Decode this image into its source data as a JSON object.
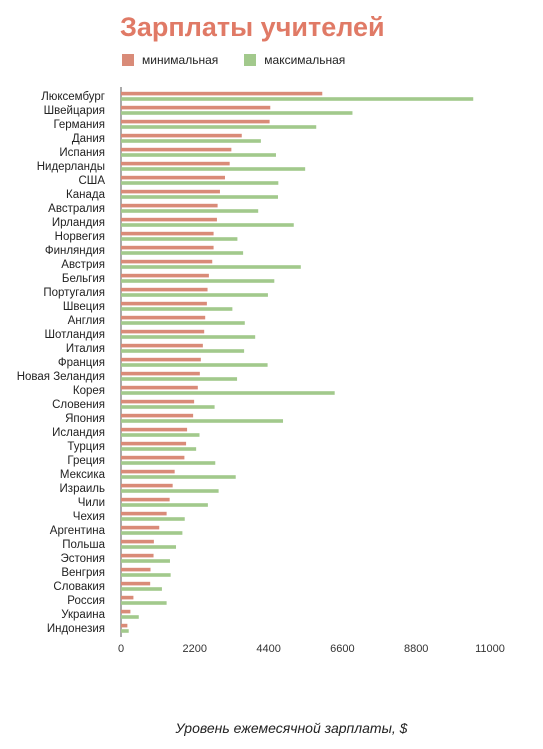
{
  "chart_data": {
    "type": "bar",
    "orientation": "horizontal",
    "title": "Зарплаты учителей",
    "xlabel": "Уровень ежемесячной зарплаты, $",
    "ylabel": "",
    "xlim": [
      0,
      12000
    ],
    "xticks": [
      "0",
      "2200",
      "4400",
      "6600",
      "8800",
      "11000"
    ],
    "grid": false,
    "legend_position": "top-left",
    "categories": [
      "Люксембург",
      "Швейцария",
      "Германия",
      "Дания",
      "Испания",
      "Нидерланды",
      "США",
      "Канада",
      "Австралия",
      "Ирландия",
      "Норвегия",
      "Финляндия",
      "Австрия",
      "Бельгия",
      "Португалия",
      "Швеция",
      "Англия",
      "Шотландия",
      "Италия",
      "Франция",
      "Новая Зеландия",
      "Корея",
      "Словения",
      "Япония",
      "Исландия",
      "Турция",
      "Греция",
      "Мексика",
      "Израиль",
      "Чили",
      "Чехия",
      "Аргентина",
      "Польша",
      "Эстония",
      "Венгрия",
      "Словакия",
      "Россия",
      "Украина",
      "Индонезия"
    ],
    "series": [
      {
        "name": "минимальная",
        "color": "#d98b78",
        "values": [
          6000,
          4450,
          4430,
          3600,
          3290,
          3240,
          3100,
          2950,
          2880,
          2860,
          2760,
          2760,
          2720,
          2620,
          2580,
          2560,
          2510,
          2480,
          2440,
          2380,
          2350,
          2290,
          2180,
          2150,
          1970,
          1940,
          1890,
          1600,
          1540,
          1450,
          1360,
          1140,
          980,
          970,
          880,
          870,
          370,
          280,
          190
        ]
      },
      {
        "name": "максимальная",
        "color": "#a2c98c",
        "values": [
          10500,
          6900,
          5820,
          4170,
          4620,
          5490,
          4690,
          4680,
          4090,
          5150,
          3470,
          3640,
          5360,
          4570,
          4380,
          3320,
          3690,
          4000,
          3670,
          4370,
          3460,
          6370,
          2790,
          4830,
          2340,
          2240,
          2810,
          3420,
          2910,
          2590,
          1900,
          1830,
          1640,
          1460,
          1480,
          1220,
          1360,
          530,
          230
        ]
      }
    ]
  }
}
